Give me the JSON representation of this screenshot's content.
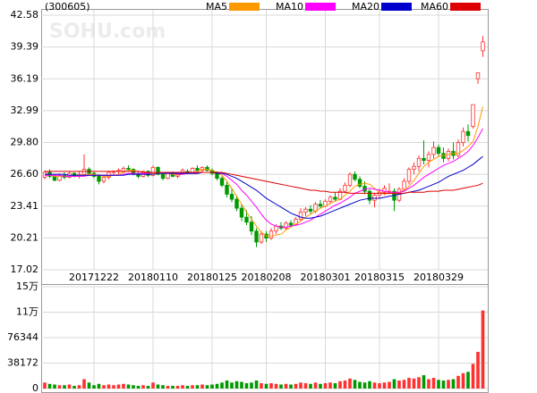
{
  "chart_data": {
    "type": "candlestick",
    "title": "(300605)",
    "watermark": "SOHU.com",
    "categories": [
      null,
      null,
      null,
      null,
      null,
      null,
      null,
      null,
      null,
      null,
      "20171222",
      null,
      null,
      null,
      null,
      null,
      null,
      null,
      null,
      null,
      null,
      null,
      "20180110",
      null,
      null,
      null,
      null,
      null,
      null,
      null,
      null,
      null,
      null,
      null,
      "20180125",
      null,
      null,
      null,
      null,
      null,
      null,
      null,
      null,
      null,
      null,
      "20180208",
      null,
      null,
      null,
      null,
      null,
      null,
      null,
      null,
      null,
      null,
      null,
      "20180301",
      null,
      null,
      null,
      null,
      null,
      null,
      null,
      null,
      null,
      null,
      "20180315",
      null,
      null,
      null,
      null,
      null,
      null,
      null,
      null,
      null,
      null,
      null,
      "20180329",
      null,
      null,
      null,
      null,
      null,
      null,
      null,
      null,
      null
    ],
    "open": [
      26.3,
      26.8,
      26.4,
      26.0,
      26.5,
      26.3,
      26.7,
      26.4,
      26.6,
      27.1,
      26.7,
      26.4,
      25.9,
      26.3,
      26.8,
      26.9,
      26.9,
      27.2,
      27.1,
      26.6,
      26.4,
      26.9,
      26.5,
      27.3,
      26.6,
      26.2,
      26.7,
      26.4,
      26.7,
      26.9,
      26.8,
      27.2,
      27.0,
      27.3,
      27.0,
      26.7,
      26.2,
      25.5,
      24.6,
      24.1,
      23.2,
      22.3,
      21.8,
      20.9,
      19.8,
      20.6,
      20.2,
      20.9,
      21.4,
      21.2,
      21.7,
      21.5,
      22.1,
      22.8,
      23.1,
      22.9,
      23.6,
      23.4,
      23.9,
      24.3,
      24.1,
      24.9,
      25.5,
      26.6,
      26.1,
      25.4,
      24.9,
      24.0,
      24.5,
      24.8,
      24.8,
      24.9,
      24.0,
      25.1,
      25.9,
      27.1,
      27.4,
      28.2,
      28.0,
      28.6,
      29.3,
      28.7,
      28.2,
      28.9,
      28.5,
      29.8,
      30.9,
      31.4,
      36.2,
      39.0
    ],
    "high": [
      27.0,
      27.1,
      26.6,
      26.7,
      26.8,
      26.9,
      26.8,
      26.9,
      28.6,
      27.3,
      26.9,
      26.6,
      26.4,
      26.9,
      27.0,
      27.2,
      27.4,
      27.5,
      27.2,
      26.9,
      27.0,
      27.0,
      27.5,
      27.4,
      26.8,
      26.8,
      26.9,
      26.8,
      27.2,
      27.1,
      27.3,
      27.5,
      27.4,
      27.5,
      27.2,
      26.9,
      26.4,
      25.9,
      25.2,
      24.5,
      23.6,
      23.0,
      22.4,
      21.2,
      20.9,
      20.9,
      21.2,
      21.6,
      21.8,
      21.9,
      22.0,
      22.3,
      23.2,
      23.3,
      23.5,
      23.8,
      24.0,
      24.1,
      24.5,
      24.8,
      25.2,
      25.8,
      26.8,
      26.9,
      26.4,
      25.9,
      25.1,
      24.7,
      25.2,
      25.5,
      25.7,
      25.2,
      25.3,
      26.2,
      27.3,
      27.8,
      28.5,
      30.0,
      28.9,
      29.9,
      29.6,
      29.3,
      29.2,
      29.8,
      30.1,
      31.3,
      31.6,
      33.6,
      36.8,
      40.5
    ],
    "low": [
      26.1,
      26.2,
      25.9,
      25.9,
      26.1,
      26.2,
      26.3,
      26.2,
      26.5,
      26.5,
      26.2,
      25.6,
      25.7,
      26.1,
      26.5,
      26.6,
      26.7,
      26.9,
      26.5,
      26.2,
      26.3,
      26.3,
      26.4,
      26.5,
      26.0,
      26.1,
      26.3,
      26.2,
      26.6,
      26.6,
      26.7,
      26.9,
      26.8,
      26.9,
      26.5,
      26.0,
      25.3,
      24.3,
      23.8,
      22.9,
      21.9,
      21.5,
      20.5,
      19.3,
      19.6,
      19.8,
      20.0,
      20.6,
      21.0,
      21.0,
      21.3,
      21.4,
      21.9,
      22.4,
      22.6,
      22.7,
      23.2,
      23.3,
      23.6,
      23.9,
      24.0,
      24.7,
      25.3,
      25.9,
      25.2,
      24.6,
      23.6,
      23.3,
      24.2,
      24.5,
      24.6,
      22.9,
      23.8,
      24.9,
      25.6,
      26.6,
      26.9,
      27.6,
      27.3,
      28.2,
      28.4,
      27.8,
      27.9,
      28.1,
      28.3,
      29.4,
      29.9,
      31.2,
      35.7,
      38.4
    ],
    "close": [
      26.8,
      26.4,
      26.0,
      26.5,
      26.3,
      26.7,
      26.4,
      26.6,
      27.1,
      26.7,
      26.4,
      25.9,
      26.3,
      26.8,
      26.9,
      27.0,
      27.2,
      27.1,
      26.6,
      26.4,
      26.9,
      26.5,
      27.3,
      26.6,
      26.2,
      26.7,
      26.4,
      26.7,
      27.0,
      26.8,
      27.2,
      27.0,
      27.3,
      27.0,
      26.7,
      26.2,
      25.5,
      24.6,
      24.1,
      23.2,
      22.3,
      21.8,
      20.9,
      19.8,
      20.6,
      20.2,
      20.9,
      21.4,
      21.2,
      21.7,
      21.5,
      22.1,
      22.8,
      23.1,
      22.9,
      23.6,
      23.4,
      23.9,
      24.3,
      24.1,
      24.9,
      25.5,
      26.6,
      26.1,
      25.4,
      24.9,
      24.0,
      24.5,
      24.8,
      25.2,
      24.9,
      24.0,
      25.1,
      25.9,
      27.1,
      27.4,
      28.2,
      28.0,
      28.6,
      29.3,
      28.7,
      28.2,
      28.9,
      28.5,
      29.8,
      30.9,
      30.5,
      33.6,
      36.8,
      39.9
    ],
    "volume": [
      9000,
      7000,
      6000,
      5000,
      5000,
      6000,
      4000,
      5000,
      14000,
      9000,
      5000,
      7000,
      5000,
      6000,
      5000,
      6000,
      7000,
      6000,
      5000,
      4000,
      5000,
      4000,
      9000,
      6000,
      5000,
      4000,
      4000,
      4000,
      5000,
      4000,
      5000,
      5000,
      6000,
      5000,
      6000,
      7000,
      9000,
      12000,
      9000,
      11000,
      10000,
      8000,
      9000,
      12000,
      8000,
      7000,
      8000,
      7000,
      6000,
      7000,
      6000,
      7000,
      9000,
      8000,
      7000,
      9000,
      7000,
      8000,
      9000,
      8000,
      11000,
      12000,
      15000,
      13000,
      10000,
      9000,
      11000,
      9000,
      8000,
      9000,
      10000,
      14000,
      12000,
      13000,
      16000,
      15000,
      17000,
      20000,
      14000,
      16000,
      13000,
      12000,
      13000,
      14000,
      19000,
      23000,
      25000,
      37000,
      55000,
      117000
    ],
    "up_color": "#ff3030",
    "down_color": "#009900",
    "series": [
      {
        "name": "MA5",
        "color": "#ff9900",
        "values": [
          26.5,
          26.5,
          26.4,
          26.4,
          26.4,
          26.4,
          26.4,
          26.4,
          26.5,
          26.6,
          26.6,
          26.5,
          26.4,
          26.4,
          26.5,
          26.6,
          26.8,
          27.0,
          27.0,
          26.9,
          26.8,
          26.7,
          26.7,
          26.7,
          26.7,
          26.7,
          26.6,
          26.5,
          26.6,
          26.7,
          26.8,
          26.9,
          27.1,
          27.1,
          27.0,
          26.8,
          26.5,
          25.9,
          25.2,
          24.4,
          23.6,
          22.8,
          22.1,
          21.4,
          20.8,
          20.4,
          20.4,
          20.5,
          20.6,
          21.0,
          21.3,
          21.6,
          21.9,
          22.3,
          22.6,
          22.9,
          23.2,
          23.4,
          23.7,
          23.9,
          24.1,
          24.5,
          24.9,
          25.4,
          25.6,
          25.7,
          25.6,
          25.2,
          24.8,
          24.6,
          24.7,
          24.7,
          24.8,
          25.0,
          25.4,
          26.0,
          26.7,
          27.4,
          27.8,
          28.1,
          28.4,
          28.5,
          28.6,
          28.7,
          28.7,
          29.0,
          29.4,
          29.9,
          31.4,
          33.4
        ]
      },
      {
        "name": "MA10",
        "color": "#ff00ff",
        "values": [
          26.5,
          26.5,
          26.5,
          26.5,
          26.4,
          26.4,
          26.4,
          26.4,
          26.4,
          26.5,
          26.5,
          26.5,
          26.5,
          26.5,
          26.5,
          26.5,
          26.6,
          26.7,
          26.7,
          26.7,
          26.7,
          26.7,
          26.8,
          26.8,
          26.8,
          26.7,
          26.7,
          26.6,
          26.6,
          26.7,
          26.7,
          26.7,
          26.8,
          26.8,
          26.8,
          26.8,
          26.7,
          26.4,
          26.0,
          25.6,
          25.0,
          24.5,
          23.9,
          23.3,
          22.6,
          22.0,
          21.6,
          21.4,
          21.3,
          21.3,
          21.4,
          21.5,
          21.6,
          21.8,
          22.0,
          22.3,
          22.6,
          22.9,
          23.2,
          23.5,
          23.7,
          24.0,
          24.3,
          24.7,
          24.9,
          25.1,
          25.2,
          25.1,
          25.0,
          24.9,
          24.8,
          24.8,
          24.8,
          24.9,
          25.2,
          25.5,
          25.9,
          26.3,
          26.6,
          26.9,
          27.2,
          27.5,
          27.7,
          27.9,
          28.2,
          28.5,
          28.9,
          29.5,
          30.3,
          31.2
        ]
      },
      {
        "name": "MA20",
        "color": "#0000cc",
        "values": [
          26.6,
          26.6,
          26.6,
          26.6,
          26.6,
          26.5,
          26.5,
          26.5,
          26.5,
          26.5,
          26.5,
          26.5,
          26.5,
          26.5,
          26.5,
          26.5,
          26.5,
          26.6,
          26.6,
          26.6,
          26.6,
          26.6,
          26.6,
          26.7,
          26.7,
          26.7,
          26.7,
          26.7,
          26.7,
          26.7,
          26.7,
          26.7,
          26.8,
          26.8,
          26.8,
          26.7,
          26.7,
          26.6,
          26.4,
          26.2,
          25.9,
          25.6,
          25.3,
          25.0,
          24.6,
          24.2,
          23.9,
          23.6,
          23.3,
          23.0,
          22.7,
          22.5,
          22.3,
          22.2,
          22.2,
          22.3,
          22.4,
          22.6,
          22.8,
          23.0,
          23.2,
          23.4,
          23.6,
          23.8,
          24.0,
          24.1,
          24.2,
          24.2,
          24.2,
          24.3,
          24.4,
          24.5,
          24.6,
          24.7,
          24.8,
          24.9,
          25.0,
          25.2,
          25.4,
          25.6,
          25.8,
          26.1,
          26.4,
          26.6,
          26.8,
          27.0,
          27.3,
          27.6,
          28.0,
          28.4
        ]
      },
      {
        "name": "MA60",
        "color": "#dd0000",
        "values": [
          26.9,
          26.9,
          26.9,
          26.9,
          26.9,
          26.9,
          26.9,
          26.9,
          26.9,
          26.9,
          26.9,
          26.9,
          26.9,
          26.9,
          26.9,
          26.9,
          26.9,
          26.9,
          26.9,
          26.9,
          26.8,
          26.8,
          26.8,
          26.8,
          26.8,
          26.8,
          26.8,
          26.8,
          26.8,
          26.8,
          26.8,
          26.8,
          26.8,
          26.8,
          26.8,
          26.8,
          26.8,
          26.7,
          26.6,
          26.5,
          26.4,
          26.3,
          26.2,
          26.1,
          26.0,
          25.9,
          25.8,
          25.7,
          25.6,
          25.5,
          25.4,
          25.3,
          25.2,
          25.1,
          25.0,
          25.0,
          24.9,
          24.9,
          24.8,
          24.8,
          24.8,
          24.8,
          24.7,
          24.7,
          24.7,
          24.7,
          24.7,
          24.7,
          24.7,
          24.7,
          24.7,
          24.7,
          24.7,
          24.7,
          24.8,
          24.8,
          24.8,
          24.8,
          24.9,
          24.9,
          24.9,
          25.0,
          25.0,
          25.0,
          25.1,
          25.2,
          25.3,
          25.4,
          25.5,
          25.7
        ]
      }
    ],
    "ylim": [
      17.02,
      42.58
    ],
    "yticks": [
      17.02,
      20.21,
      23.41,
      {
        "value": 26.6,
        "label": "26.60"
      },
      {
        "value": 29.8,
        "label": "29.80"
      },
      32.99,
      36.19,
      39.39,
      42.58
    ],
    "volume_ylim": [
      0,
      152688
    ],
    "volume_yticks": [
      0,
      38172,
      76344,
      {
        "value": 114516,
        "label": "11万"
      },
      {
        "value": 152688,
        "label": "15万"
      }
    ],
    "grid": true
  }
}
